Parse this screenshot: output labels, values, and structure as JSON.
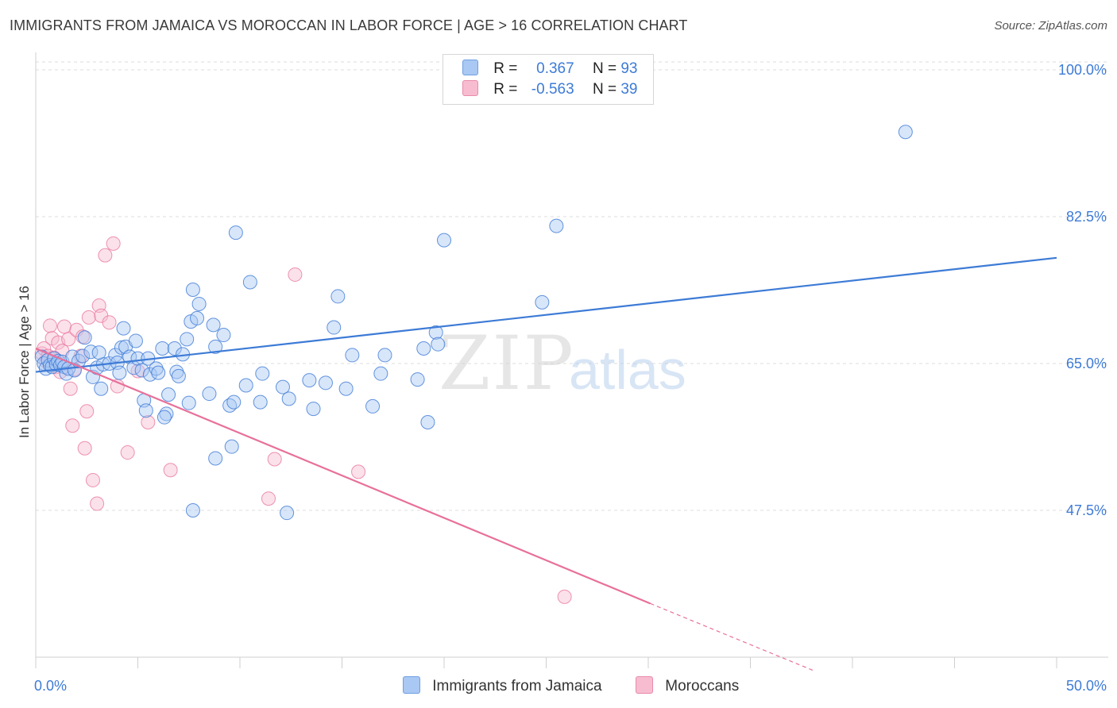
{
  "header": {
    "title": "IMMIGRANTS FROM JAMAICA VS MOROCCAN IN LABOR FORCE | AGE > 16 CORRELATION CHART",
    "source": "Source: ZipAtlas.com"
  },
  "legend": {
    "rows": [
      {
        "r_label": "R =",
        "r_value": "0.367",
        "n_label": "N =",
        "n_value": "93",
        "color": "#a9c8f3"
      },
      {
        "r_label": "R =",
        "r_value": "-0.563",
        "n_label": "N =",
        "n_value": "39",
        "color": "#f7bcd0"
      }
    ]
  },
  "bottom_legend": {
    "items": [
      {
        "label": "Immigrants from Jamaica",
        "color": "#a9c8f3"
      },
      {
        "label": "Moroccans",
        "color": "#f7bcd0"
      }
    ]
  },
  "watermark": {
    "zip": "ZIP",
    "atlas": "atlas"
  },
  "chart_data": {
    "type": "scatter",
    "title": "IMMIGRANTS FROM JAMAICA VS MOROCCAN IN LABOR FORCE | AGE > 16 CORRELATION CHART",
    "xlabel": "",
    "ylabel": "In Labor Force | Age > 16",
    "xlim": [
      0,
      50
    ],
    "ylim": [
      30,
      100
    ],
    "x_tick_labels": [
      "0.0%",
      "50.0%"
    ],
    "y_ticks": [
      47.5,
      65.0,
      82.5,
      100.0
    ],
    "y_tick_labels": [
      "47.5%",
      "65.0%",
      "82.5%",
      "100.0%"
    ],
    "grid": "dashed horizontal",
    "legend_position": "top-center",
    "series": [
      {
        "name": "Immigrants from Jamaica",
        "color": "#3d7bd6",
        "fill": "#a9c8f3",
        "r": 0.367,
        "n": 93,
        "trend": {
          "x": [
            0,
            50
          ],
          "y": [
            64.0,
            77.6
          ]
        },
        "points": [
          [
            0.3,
            65.8
          ],
          [
            0.4,
            65.0
          ],
          [
            0.5,
            64.4
          ],
          [
            0.6,
            65.4
          ],
          [
            0.7,
            64.8
          ],
          [
            0.8,
            64.6
          ],
          [
            0.9,
            65.6
          ],
          [
            1.0,
            64.9
          ],
          [
            1.1,
            65.3
          ],
          [
            1.2,
            64.8
          ],
          [
            1.3,
            65.2
          ],
          [
            1.4,
            64.6
          ],
          [
            1.5,
            63.8
          ],
          [
            1.6,
            64.4
          ],
          [
            1.8,
            65.8
          ],
          [
            1.9,
            64.2
          ],
          [
            2.1,
            65.3
          ],
          [
            2.3,
            65.9
          ],
          [
            2.4,
            68.1
          ],
          [
            2.7,
            66.4
          ],
          [
            2.8,
            63.4
          ],
          [
            3.0,
            64.5
          ],
          [
            3.2,
            62.0
          ],
          [
            3.3,
            64.9
          ],
          [
            3.6,
            65.0
          ],
          [
            3.9,
            66.0
          ],
          [
            4.0,
            65.1
          ],
          [
            4.2,
            66.9
          ],
          [
            4.3,
            69.2
          ],
          [
            4.4,
            67.0
          ],
          [
            4.6,
            65.8
          ],
          [
            4.8,
            64.5
          ],
          [
            4.9,
            67.7
          ],
          [
            5.0,
            65.6
          ],
          [
            5.2,
            64.2
          ],
          [
            5.5,
            65.6
          ],
          [
            5.3,
            60.6
          ],
          [
            5.4,
            59.4
          ],
          [
            5.6,
            63.7
          ],
          [
            5.9,
            64.4
          ],
          [
            6.0,
            63.9
          ],
          [
            6.2,
            66.8
          ],
          [
            6.4,
            59.0
          ],
          [
            6.3,
            58.6
          ],
          [
            6.5,
            61.3
          ],
          [
            6.8,
            66.8
          ],
          [
            6.9,
            64.0
          ],
          [
            7.0,
            63.5
          ],
          [
            7.2,
            66.1
          ],
          [
            7.4,
            67.9
          ],
          [
            7.5,
            60.3
          ],
          [
            7.6,
            70.0
          ],
          [
            7.7,
            73.8
          ],
          [
            7.9,
            70.4
          ],
          [
            8.0,
            72.1
          ],
          [
            8.5,
            61.4
          ],
          [
            8.7,
            69.6
          ],
          [
            8.8,
            67.0
          ],
          [
            8.8,
            53.7
          ],
          [
            9.2,
            68.4
          ],
          [
            9.5,
            60.0
          ],
          [
            9.6,
            55.1
          ],
          [
            9.7,
            60.4
          ],
          [
            9.8,
            80.6
          ],
          [
            10.3,
            62.4
          ],
          [
            10.5,
            74.7
          ],
          [
            11.0,
            60.4
          ],
          [
            11.1,
            63.8
          ],
          [
            12.1,
            62.2
          ],
          [
            12.3,
            47.2
          ],
          [
            12.4,
            60.8
          ],
          [
            13.4,
            63.0
          ],
          [
            13.6,
            59.6
          ],
          [
            14.2,
            62.7
          ],
          [
            14.6,
            69.3
          ],
          [
            14.8,
            73.0
          ],
          [
            15.2,
            62.0
          ],
          [
            15.5,
            66.0
          ],
          [
            16.5,
            59.9
          ],
          [
            16.9,
            63.8
          ],
          [
            17.1,
            66.0
          ],
          [
            18.7,
            63.1
          ],
          [
            19.0,
            66.8
          ],
          [
            19.2,
            58.0
          ],
          [
            19.6,
            68.7
          ],
          [
            19.7,
            67.3
          ],
          [
            20.0,
            79.7
          ],
          [
            24.8,
            72.3
          ],
          [
            25.5,
            81.4
          ],
          [
            42.6,
            92.6
          ],
          [
            7.7,
            47.5
          ],
          [
            3.1,
            66.3
          ],
          [
            4.1,
            63.9
          ]
        ]
      },
      {
        "name": "Moroccans",
        "color": "#e8709a",
        "fill": "#f7bcd0",
        "r": -0.563,
        "n": 39,
        "trend": {
          "x": [
            0,
            30.1
          ],
          "y": [
            66.8,
            36.4
          ]
        },
        "trend_dashed": {
          "x": [
            30.1,
            38.1
          ],
          "y": [
            36.4,
            28.4
          ]
        },
        "points": [
          [
            0.3,
            66.2
          ],
          [
            0.4,
            66.8
          ],
          [
            0.5,
            65.3
          ],
          [
            0.6,
            65.9
          ],
          [
            0.7,
            69.5
          ],
          [
            0.8,
            68.0
          ],
          [
            0.9,
            65.7
          ],
          [
            1.0,
            64.6
          ],
          [
            1.1,
            67.5
          ],
          [
            1.2,
            64.0
          ],
          [
            1.4,
            69.4
          ],
          [
            1.6,
            67.9
          ],
          [
            1.7,
            62.0
          ],
          [
            1.8,
            57.6
          ],
          [
            1.9,
            64.3
          ],
          [
            2.0,
            69.0
          ],
          [
            2.2,
            65.9
          ],
          [
            2.3,
            68.2
          ],
          [
            2.5,
            59.3
          ],
          [
            2.6,
            70.5
          ],
          [
            2.8,
            51.1
          ],
          [
            3.0,
            48.3
          ],
          [
            3.1,
            71.9
          ],
          [
            3.2,
            70.7
          ],
          [
            3.4,
            77.9
          ],
          [
            3.6,
            69.9
          ],
          [
            3.8,
            79.3
          ],
          [
            4.0,
            62.3
          ],
          [
            4.5,
            54.4
          ],
          [
            5.0,
            64.1
          ],
          [
            5.5,
            58.0
          ],
          [
            6.6,
            52.3
          ],
          [
            11.4,
            48.9
          ],
          [
            11.7,
            53.6
          ],
          [
            12.7,
            75.6
          ],
          [
            15.8,
            52.1
          ],
          [
            25.9,
            37.2
          ],
          [
            2.4,
            54.9
          ],
          [
            1.3,
            66.5
          ]
        ]
      }
    ]
  }
}
